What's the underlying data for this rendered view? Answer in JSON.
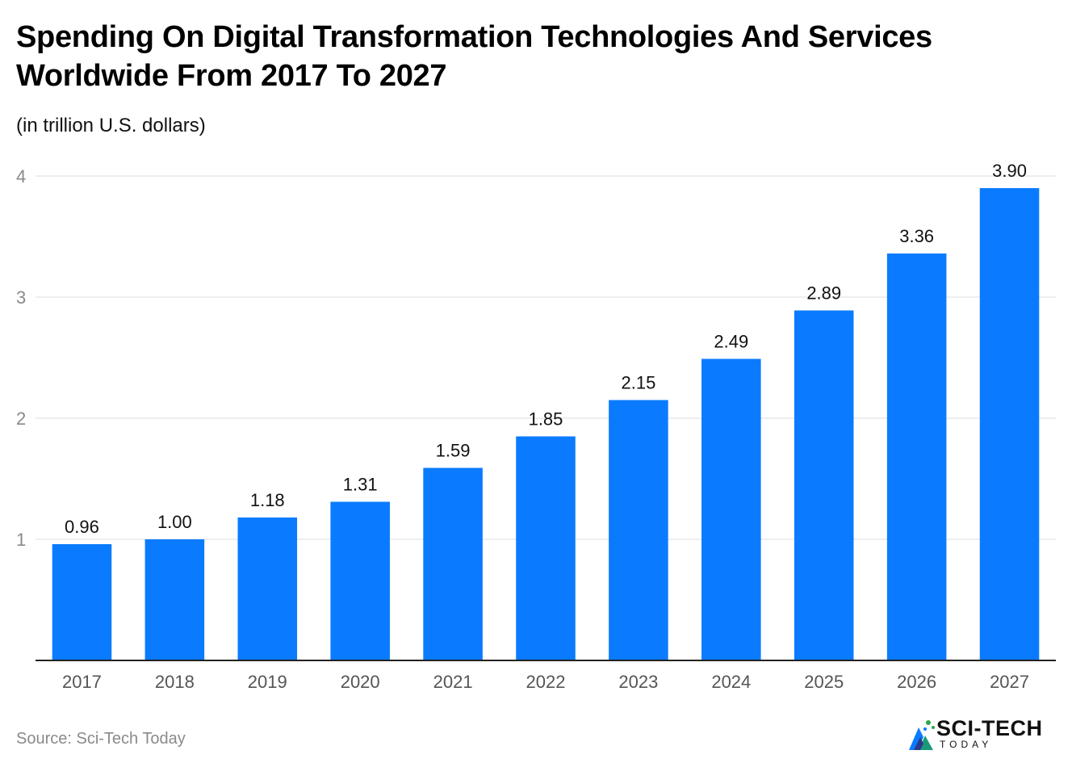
{
  "title": "Spending On Digital Transformation Technologies And Services Worldwide From 2017 To 2027",
  "subtitle": "(in trillion U.S. dollars)",
  "source": "Source: Sci-Tech Today",
  "logo": {
    "name": "SCI-TECH",
    "sub": "TODAY"
  },
  "colors": {
    "bar": "#0A7BFF",
    "grid": "#dddddd",
    "axis": "#222222",
    "tick": "#8a8a8a",
    "label": "#111111"
  },
  "chart_data": {
    "type": "bar",
    "title": "Spending On Digital Transformation Technologies And Services Worldwide From 2017 To 2027",
    "xlabel": "",
    "ylabel": "(in trillion U.S. dollars)",
    "categories": [
      "2017",
      "2018",
      "2019",
      "2020",
      "2021",
      "2022",
      "2023",
      "2024",
      "2025",
      "2026",
      "2027"
    ],
    "values": [
      0.96,
      1.0,
      1.18,
      1.31,
      1.59,
      1.85,
      2.15,
      2.49,
      2.89,
      3.36,
      3.9
    ],
    "value_labels": [
      "0.96",
      "1.00",
      "1.18",
      "1.31",
      "1.59",
      "1.85",
      "2.15",
      "2.49",
      "2.89",
      "3.36",
      "3.90"
    ],
    "ylim": [
      0,
      4
    ],
    "yticks": [
      1,
      2,
      3,
      4
    ],
    "ytick_labels": [
      "1",
      "2",
      "3",
      "4"
    ],
    "grid": true,
    "legend": "none"
  }
}
